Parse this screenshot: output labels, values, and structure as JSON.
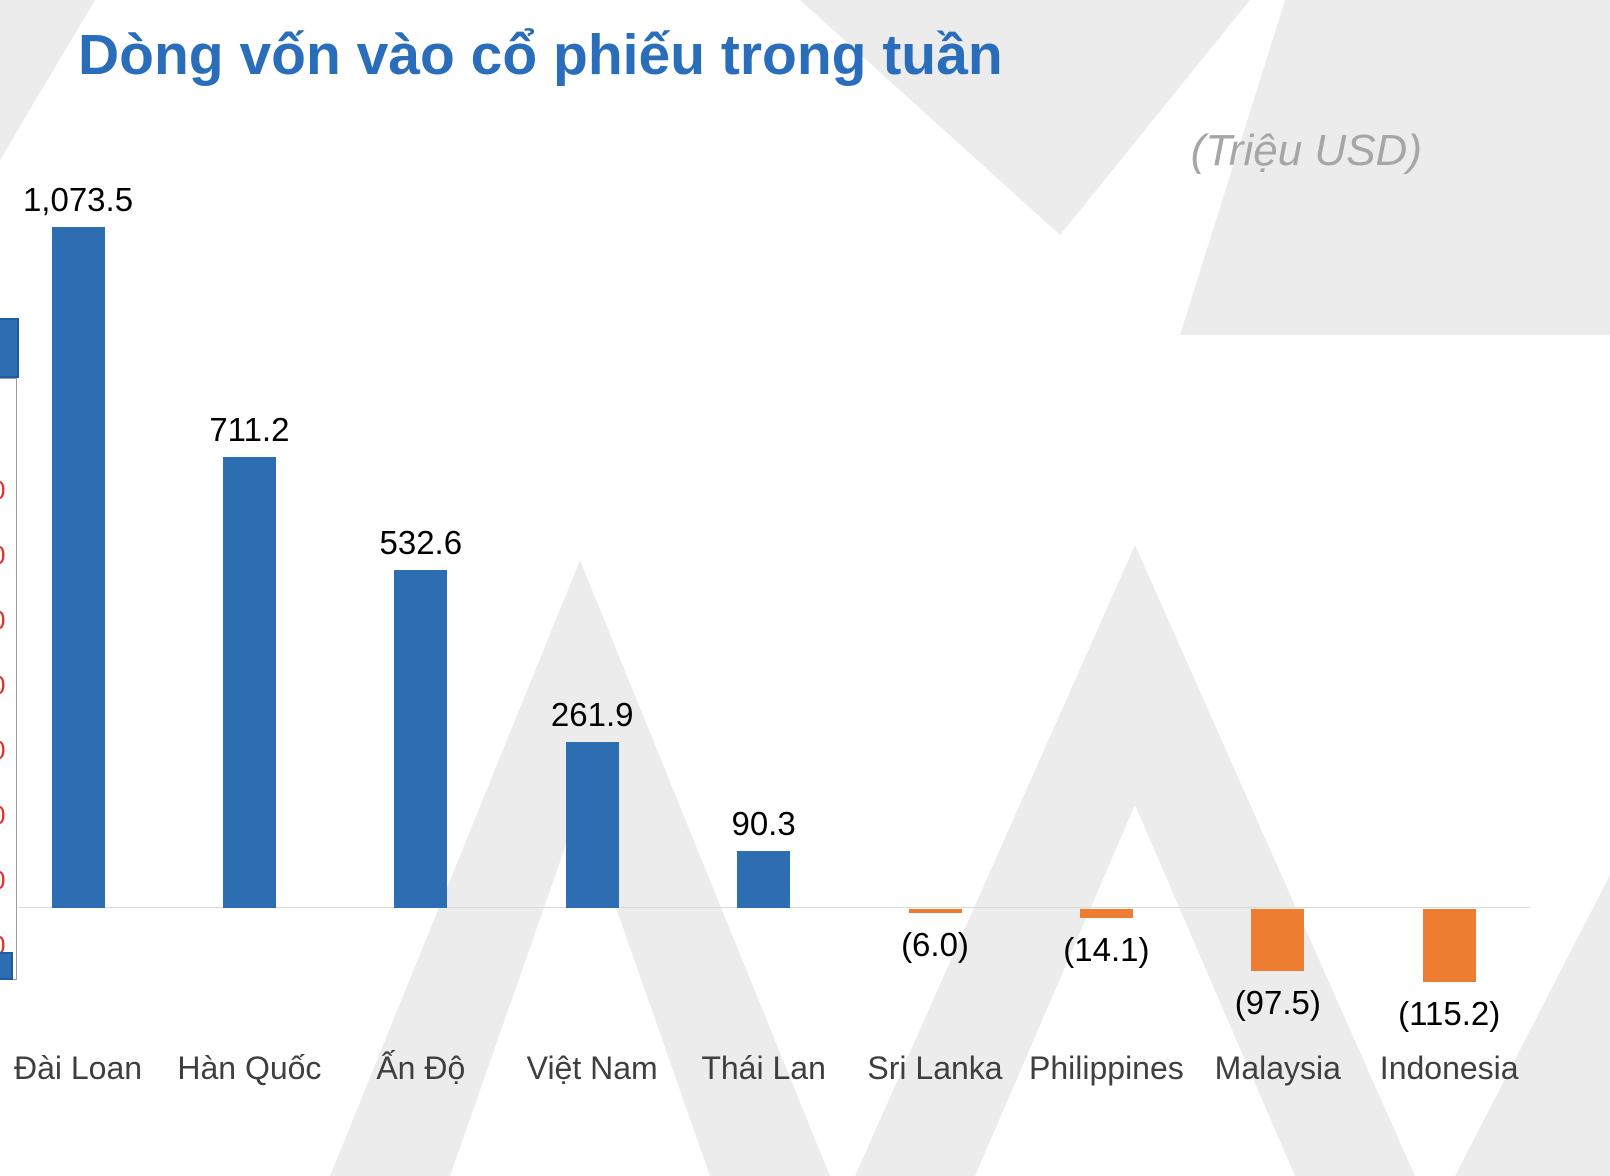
{
  "title": "Dòng vốn vào cổ phiếu trong tuần",
  "unit_label": "(Triệu USD)",
  "colors": {
    "title_blue": "#2A6EBB",
    "positive_bar": "#2D6EB3",
    "negative_bar": "#ED7D31",
    "subtitle_gray": "#A6A6A6",
    "watermark_gray": "#ECECEC",
    "axis_line": "#D9D9D9",
    "fragment_red": "#E03028"
  },
  "left_fragment": {
    "ticks": [
      "0",
      "0",
      "0",
      "0",
      "0",
      "0",
      "0",
      "0"
    ]
  },
  "chart_data": {
    "type": "bar",
    "title": "Dòng vốn vào cổ phiếu trong tuần",
    "ylabel": "Triệu USD",
    "categories": [
      "Đài Loan",
      "Hàn Quốc",
      "Ấn Độ",
      "Việt Nam",
      "Thái Lan",
      "Sri Lanka",
      "Philippines",
      "Malaysia",
      "Indonesia"
    ],
    "values": [
      1073.5,
      711.2,
      532.6,
      261.9,
      90.3,
      -6.0,
      -14.1,
      -97.5,
      -115.2
    ],
    "data_labels": [
      "1,073.5",
      "711.2",
      "532.6",
      "261.9",
      "90.3",
      "(6.0)",
      "(14.1)",
      "(97.5)",
      "(115.2)"
    ],
    "positive_color": "#2D6EB3",
    "negative_color": "#ED7D31",
    "ylim": [
      -200,
      1200
    ],
    "grid": false,
    "legend": "none",
    "baseline": 0
  }
}
